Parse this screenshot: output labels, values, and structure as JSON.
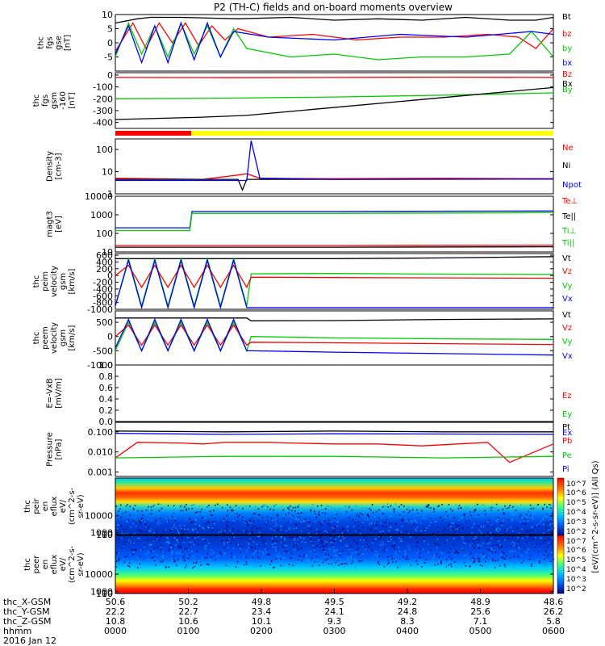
{
  "figure": {
    "title": "P2 (TH-C) fields and on-board moments overview"
  },
  "chart_data": [
    {
      "type": "line",
      "panel_id": "fgs_gse",
      "ylabel_lines": [
        "thc",
        "fgs",
        "gse",
        "[nT]"
      ],
      "ylim": [
        -10,
        10
      ],
      "yticks": [
        -5,
        0,
        5,
        10
      ],
      "legend": [
        {
          "label": "Bt",
          "color": "#000000"
        },
        {
          "label": "bz",
          "color": "#ff0000"
        },
        {
          "label": "by",
          "color": "#00cc00"
        },
        {
          "label": "bx",
          "color": "#0000ff"
        }
      ],
      "series": [
        {
          "color": "#000000",
          "x": [
            0,
            0.05,
            0.08,
            0.15,
            0.28,
            0.4,
            0.5,
            0.6,
            0.7,
            0.8,
            0.9,
            0.96,
            1
          ],
          "y": [
            7,
            8.5,
            9,
            9,
            8.5,
            9,
            8,
            8.5,
            8,
            9,
            8,
            8,
            9
          ]
        },
        {
          "color": "#ff0000",
          "x": [
            0,
            0.02,
            0.04,
            0.07,
            0.1,
            0.13,
            0.16,
            0.19,
            0.22,
            0.25,
            0.28,
            0.35,
            0.45,
            0.55,
            0.65,
            0.75,
            0.85,
            0.92,
            0.96,
            1
          ],
          "y": [
            -3,
            2,
            7,
            -2,
            7,
            0,
            7,
            -1,
            6,
            1,
            5,
            2,
            3,
            1,
            2,
            2,
            3,
            2,
            -2,
            5
          ]
        },
        {
          "color": "#00cc00",
          "x": [
            0,
            0.03,
            0.06,
            0.09,
            0.12,
            0.15,
            0.18,
            0.21,
            0.24,
            0.27,
            0.3,
            0.4,
            0.5,
            0.6,
            0.7,
            0.8,
            0.9,
            0.95,
            1
          ],
          "y": [
            -5,
            7,
            -4,
            6,
            -5,
            7,
            -4,
            6,
            -5,
            5,
            -2,
            -5,
            -4,
            -6,
            -5,
            -5,
            -4,
            4,
            -5
          ]
        },
        {
          "color": "#0000ff",
          "x": [
            0,
            0.03,
            0.06,
            0.09,
            0.12,
            0.15,
            0.18,
            0.21,
            0.24,
            0.27,
            0.35,
            0.5,
            0.65,
            0.8,
            0.95,
            1
          ],
          "y": [
            -4,
            6,
            -7,
            6,
            -7,
            7,
            -6,
            7,
            -5,
            4,
            2,
            1,
            3,
            2,
            4,
            3
          ]
        }
      ]
    },
    {
      "type": "line",
      "panel_id": "fgs_gsm",
      "ylabel_lines": [
        "thc",
        "fgs",
        "gsm",
        "-160",
        "[nT]"
      ],
      "ylim": [
        -450,
        20
      ],
      "yticks": [
        -400,
        -300,
        -200,
        -100,
        0
      ],
      "legend": [
        {
          "label": "Bz",
          "color": "#ff0000"
        },
        {
          "label": "Bx",
          "color": "#000000"
        },
        {
          "label": "By",
          "color": "#00cc00"
        }
      ],
      "series": [
        {
          "color": "#ff0000",
          "x": [
            0,
            0.25,
            0.5,
            0.75,
            1
          ],
          "y": [
            -20,
            -22,
            -20,
            -18,
            -20
          ]
        },
        {
          "color": "#00cc00",
          "x": [
            0,
            0.25,
            0.5,
            0.75,
            1
          ],
          "y": [
            -200,
            -195,
            -185,
            -170,
            -150
          ]
        },
        {
          "color": "#000000",
          "x": [
            0,
            0.2,
            0.3,
            1
          ],
          "y": [
            -375,
            -355,
            -340,
            -105
          ]
        }
      ]
    },
    {
      "type": "line",
      "panel_id": "density",
      "ylabel_lines": [
        "Density",
        "[cm-3]"
      ],
      "log": true,
      "ylim": [
        1,
        300
      ],
      "yticks": [
        1,
        10,
        100
      ],
      "legend": [
        {
          "label": "Ne",
          "color": "#ff0000"
        },
        {
          "label": "Ni",
          "color": "#000000"
        },
        {
          "label": "Npot",
          "color": "#0000ff"
        }
      ],
      "series": [
        {
          "color": "#ff0000",
          "x": [
            0,
            0.2,
            0.28,
            0.3,
            0.33,
            0.5,
            0.75,
            1
          ],
          "y": [
            5,
            4.5,
            7,
            8,
            5,
            4.8,
            5,
            4.8
          ]
        },
        {
          "color": "#000000",
          "x": [
            0,
            0.28,
            0.29,
            0.3,
            0.5,
            1
          ],
          "y": [
            4.5,
            4.5,
            1.5,
            4.5,
            4.5,
            4.6
          ]
        },
        {
          "color": "#0000ff",
          "x": [
            0,
            0.3,
            0.31,
            0.33,
            0.5,
            1
          ],
          "y": [
            4,
            4,
            250,
            5,
            4.5,
            4.6
          ]
        }
      ]
    },
    {
      "type": "line",
      "panel_id": "temperature",
      "ylabel_lines": [
        "magt3",
        "[eV]"
      ],
      "log": true,
      "ylim": [
        10,
        10000
      ],
      "yticks": [
        10,
        100,
        1000,
        10000
      ],
      "legend": [
        {
          "label": "Te⊥",
          "color": "#ff0000"
        },
        {
          "label": "Te||",
          "color": "#000000"
        },
        {
          "label": "Ti⊥",
          "color": "#00cc00"
        },
        {
          "label": "Ti||",
          "color": "#00cc00"
        }
      ],
      "series": [
        {
          "color": "#0000ff",
          "x": [
            0,
            0.17,
            0.175,
            0.5,
            1
          ],
          "y": [
            200,
            200,
            1500,
            1500,
            1600
          ]
        },
        {
          "color": "#00cc00",
          "x": [
            0,
            0.17,
            0.175,
            0.5,
            1
          ],
          "y": [
            140,
            140,
            1200,
            1200,
            1300
          ]
        },
        {
          "color": "#ff0000",
          "x": [
            0,
            0.5,
            1
          ],
          "y": [
            22,
            22,
            23
          ]
        },
        {
          "color": "#000000",
          "x": [
            0,
            0.5,
            1
          ],
          "y": [
            18,
            18,
            19
          ]
        }
      ]
    },
    {
      "type": "line",
      "panel_id": "peim_velocity",
      "ylabel_lines": [
        "thc",
        "peim",
        "velocity",
        "gsm",
        "[km/s]"
      ],
      "ylim": [
        -1000,
        650
      ],
      "yticks": [
        -1000,
        -800,
        -600,
        -400,
        -200,
        0,
        200,
        400,
        600
      ],
      "legend": [
        {
          "label": "Vt",
          "color": "#000000"
        },
        {
          "label": "Vz",
          "color": "#ff0000"
        },
        {
          "label": "Vy",
          "color": "#00cc00"
        },
        {
          "label": "Vx",
          "color": "#0000ff"
        }
      ],
      "series": [
        {
          "color": "#000000",
          "x": [
            0,
            0.3,
            0.5,
            0.75,
            1
          ],
          "y": [
            500,
            500,
            500,
            520,
            560
          ]
        },
        {
          "color": "#00cc00",
          "x": [
            0,
            0.03,
            0.06,
            0.09,
            0.12,
            0.15,
            0.18,
            0.21,
            0.24,
            0.27,
            0.3,
            0.31,
            0.5,
            0.75,
            1
          ],
          "y": [
            -900,
            500,
            -900,
            500,
            -900,
            500,
            -900,
            500,
            -900,
            500,
            -900,
            50,
            60,
            40,
            30
          ]
        },
        {
          "color": "#ff0000",
          "x": [
            0,
            0.03,
            0.06,
            0.09,
            0.12,
            0.15,
            0.18,
            0.21,
            0.24,
            0.27,
            0.3,
            0.31,
            0.5,
            0.75,
            1
          ],
          "y": [
            0,
            300,
            -350,
            300,
            -350,
            300,
            -350,
            300,
            -350,
            300,
            -350,
            -50,
            -60,
            -70,
            -80
          ]
        },
        {
          "color": "#0000ff",
          "x": [
            0,
            0.03,
            0.06,
            0.09,
            0.12,
            0.15,
            0.18,
            0.21,
            0.24,
            0.27,
            0.3,
            0.31,
            0.5,
            0.75,
            1
          ],
          "y": [
            -900,
            450,
            -950,
            450,
            -950,
            450,
            -950,
            450,
            -950,
            450,
            -950,
            -950,
            -950,
            -950,
            -950
          ]
        }
      ]
    },
    {
      "type": "line",
      "panel_id": "peem_velocity",
      "ylabel_lines": [
        "thc",
        "peem",
        "velocity",
        "gsm",
        "[km/s]"
      ],
      "ylim": [
        -1000,
        900
      ],
      "yticks": [
        -1000,
        -500,
        0,
        500
      ],
      "legend": [
        {
          "label": "Vt",
          "color": "#000000"
        },
        {
          "label": "Vz",
          "color": "#ff0000"
        },
        {
          "label": "Vy",
          "color": "#00cc00"
        },
        {
          "label": "Vx",
          "color": "#0000ff"
        }
      ],
      "series": [
        {
          "color": "#000000",
          "x": [
            0,
            0.3,
            0.31,
            0.5,
            0.75,
            1
          ],
          "y": [
            650,
            650,
            550,
            560,
            600,
            620
          ]
        },
        {
          "color": "#00cc00",
          "x": [
            0,
            0.03,
            0.06,
            0.09,
            0.12,
            0.15,
            0.18,
            0.21,
            0.24,
            0.27,
            0.3,
            0.31,
            0.5,
            0.75,
            1
          ],
          "y": [
            -500,
            500,
            -500,
            500,
            -500,
            500,
            -500,
            500,
            -500,
            500,
            -500,
            0,
            -50,
            -80,
            -100
          ]
        },
        {
          "color": "#ff0000",
          "x": [
            0,
            0.03,
            0.06,
            0.09,
            0.12,
            0.15,
            0.18,
            0.21,
            0.24,
            0.27,
            0.3,
            0.31,
            0.5,
            0.75,
            1
          ],
          "y": [
            0,
            400,
            -300,
            400,
            -300,
            400,
            -300,
            400,
            -300,
            400,
            -300,
            -200,
            -220,
            -250,
            -280
          ]
        },
        {
          "color": "#0000ff",
          "x": [
            0,
            0.03,
            0.06,
            0.09,
            0.12,
            0.15,
            0.18,
            0.21,
            0.24,
            0.27,
            0.3,
            0.31,
            0.5,
            0.75,
            1
          ],
          "y": [
            -400,
            600,
            -500,
            600,
            -500,
            600,
            -500,
            600,
            -500,
            600,
            -500,
            -500,
            -550,
            -600,
            -650
          ]
        }
      ]
    },
    {
      "type": "line",
      "panel_id": "efield",
      "ylabel_lines": [
        "E=-VxB",
        "[mV/m]"
      ],
      "ylim": [
        0,
        1
      ],
      "yticks": [
        0,
        0.2,
        0.4,
        0.6,
        0.8,
        1.0
      ],
      "ytick_labels": [
        "0.0",
        "0.2",
        "0.4",
        "0.6",
        "0.8",
        "1.0"
      ],
      "legend": [
        {
          "label": "Ez",
          "color": "#ff0000"
        },
        {
          "label": "Ey",
          "color": "#00cc00"
        },
        {
          "label": "Ex",
          "color": "#0000ff"
        }
      ],
      "series": []
    },
    {
      "type": "line",
      "panel_id": "pressure",
      "ylabel_lines": [
        "Pressure",
        "[nPa]"
      ],
      "log": true,
      "ylim": [
        0.0006,
        0.3
      ],
      "yticks": [
        0.001,
        0.01,
        0.1
      ],
      "ytick_labels": [
        "0.001",
        "0.010",
        "0.100"
      ],
      "legend": [
        {
          "label": "Pt",
          "color": "#000000"
        },
        {
          "label": "Pb",
          "color": "#ff0000"
        },
        {
          "label": "Pe",
          "color": "#00cc00"
        },
        {
          "label": "Pi",
          "color": "#0000ff"
        }
      ],
      "series": [
        {
          "color": "#000000",
          "x": [
            0,
            0.25,
            0.5,
            0.75,
            1
          ],
          "y": [
            0.11,
            0.1,
            0.11,
            0.1,
            0.1
          ]
        },
        {
          "color": "#0000ff",
          "x": [
            0,
            0.25,
            0.5,
            0.75,
            1
          ],
          "y": [
            0.085,
            0.075,
            0.08,
            0.078,
            0.075
          ]
        },
        {
          "color": "#ff0000",
          "x": [
            0,
            0.05,
            0.15,
            0.2,
            0.25,
            0.35,
            0.4,
            0.5,
            0.6,
            0.7,
            0.85,
            0.9,
            1
          ],
          "y": [
            0.005,
            0.03,
            0.028,
            0.025,
            0.03,
            0.03,
            0.028,
            0.025,
            0.025,
            0.02,
            0.03,
            0.003,
            0.025
          ]
        },
        {
          "color": "#00cc00",
          "x": [
            0,
            0.25,
            0.5,
            0.75,
            1
          ],
          "y": [
            0.005,
            0.006,
            0.006,
            0.005,
            0.006
          ]
        }
      ]
    },
    {
      "type": "heatmap",
      "panel_id": "peir_eflux",
      "ylabel_lines": [
        "thc",
        "peir",
        "en",
        "eflux",
        "eV/",
        "(cm^2-s-",
        "sr-eV)"
      ],
      "ylim": [
        5,
        30000
      ],
      "yticks": [
        10,
        100,
        1000,
        10000
      ],
      "ytick_labels": [
        "10",
        "100",
        "1000",
        "10000"
      ]
    },
    {
      "type": "heatmap",
      "panel_id": "peer_eflux",
      "ylabel_lines": [
        "thc",
        "peer",
        "en",
        "eflux",
        "eV/",
        "(cm^2-s-",
        "sr-eV)"
      ],
      "ylim": [
        5,
        30000
      ],
      "yticks": [
        10,
        100,
        1000,
        10000
      ],
      "ytick_labels": [
        "10",
        "100",
        "1000",
        "10000"
      ]
    }
  ],
  "colorbar": {
    "tick_labels": [
      "10^7",
      "10^6",
      "10^5",
      "10^4",
      "10^3",
      "10^2",
      "10^7",
      "10^6",
      "10^5",
      "10^4",
      "10^3",
      "10^2"
    ],
    "label": "[eV/(cm^2-s-sr-eV)] (All Qs)"
  },
  "x_axis": {
    "rows": [
      {
        "label": "thc_X-GSM",
        "values": [
          "50.6",
          "50.2",
          "49.8",
          "49.5",
          "49.2",
          "48.9",
          "48.6"
        ]
      },
      {
        "label": "thc_Y-GSM",
        "values": [
          "22.2",
          "22.7",
          "23.4",
          "24.1",
          "24.8",
          "25.6",
          "26.2"
        ]
      },
      {
        "label": "thc_Z-GSM",
        "values": [
          "10.8",
          "10.6",
          "10.1",
          "9.3",
          "8.3",
          "7.1",
          "5.8"
        ]
      },
      {
        "label": "hhmm",
        "values": [
          "0000",
          "0100",
          "0200",
          "0300",
          "0400",
          "0500",
          "0600"
        ]
      }
    ],
    "date": "2016 Jan 12"
  }
}
